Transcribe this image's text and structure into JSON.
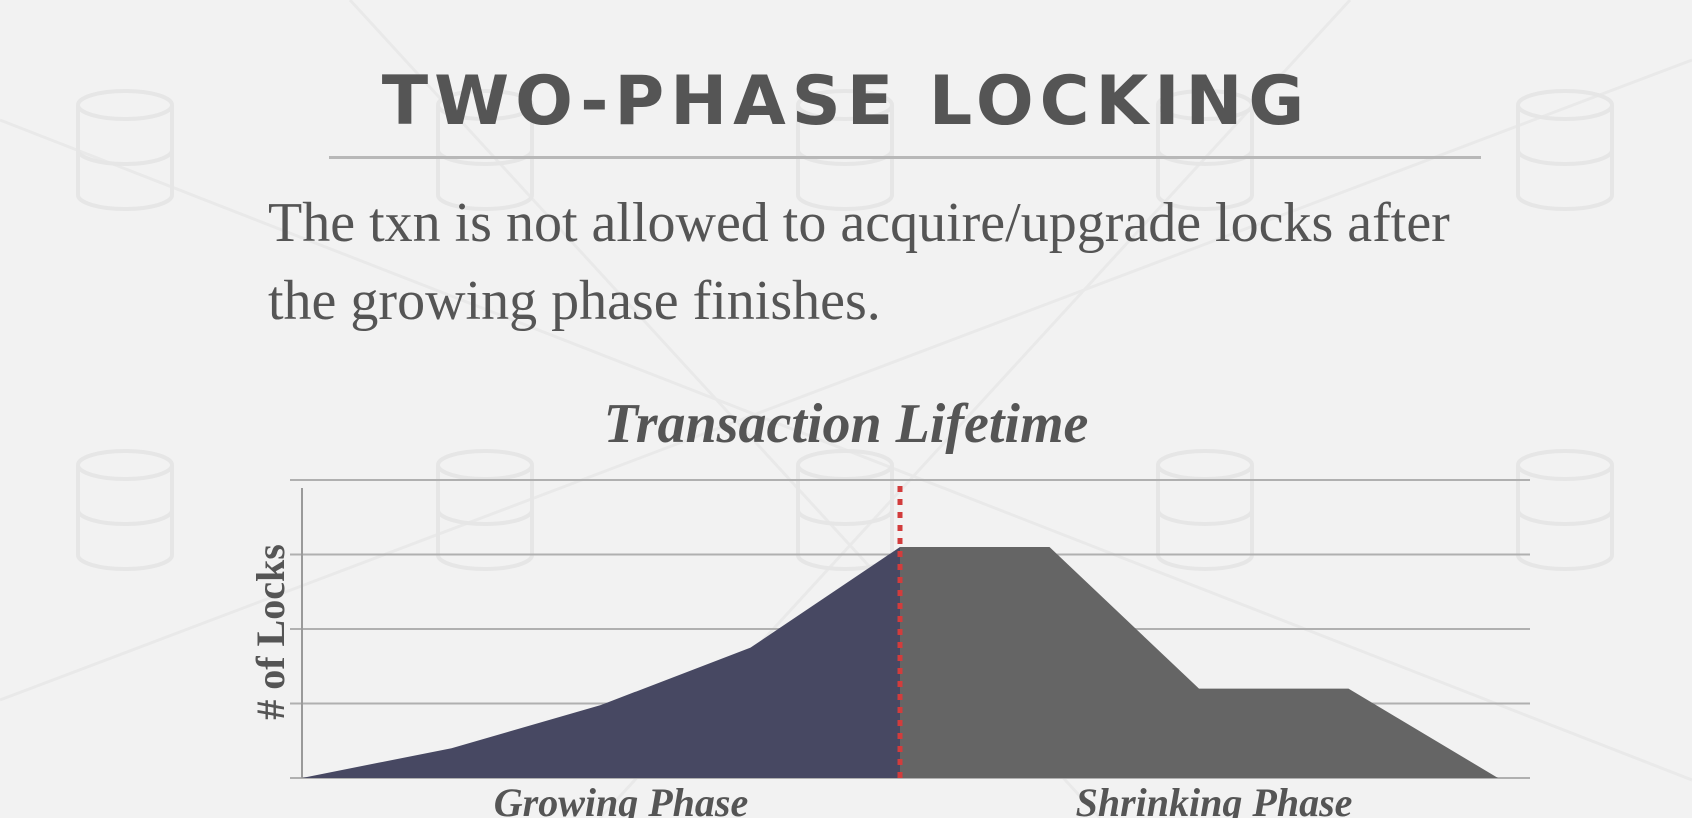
{
  "slide": {
    "title": "TWO-PHASE LOCKING",
    "text": "The txn is not allowed to acquire/upgrade locks after the growing phase finishes."
  },
  "colors": {
    "growing_fill": "#474862",
    "shrinking_fill": "#656565",
    "phase_divider": "#d23c3c",
    "gridline": "#b0b0b0",
    "text": "#555555"
  },
  "chart_data": {
    "type": "area",
    "title": "Transaction Lifetime",
    "ylabel": "# of Locks",
    "xlabel": "",
    "ylim": [
      0,
      4
    ],
    "grid": true,
    "x": [
      0,
      1,
      2,
      3,
      4,
      5,
      6,
      7,
      8
    ],
    "series": [
      {
        "name": "Growing Phase",
        "x": [
          0,
          1,
          2,
          3,
          4
        ],
        "values": [
          0,
          0.4,
          0.98,
          1.75,
          3.1
        ]
      },
      {
        "name": "Shrinking Phase",
        "x": [
          4,
          5,
          6,
          7,
          8
        ],
        "values": [
          3.1,
          3.1,
          1.2,
          1.2,
          0
        ]
      }
    ],
    "phase_boundary_x": 4
  }
}
